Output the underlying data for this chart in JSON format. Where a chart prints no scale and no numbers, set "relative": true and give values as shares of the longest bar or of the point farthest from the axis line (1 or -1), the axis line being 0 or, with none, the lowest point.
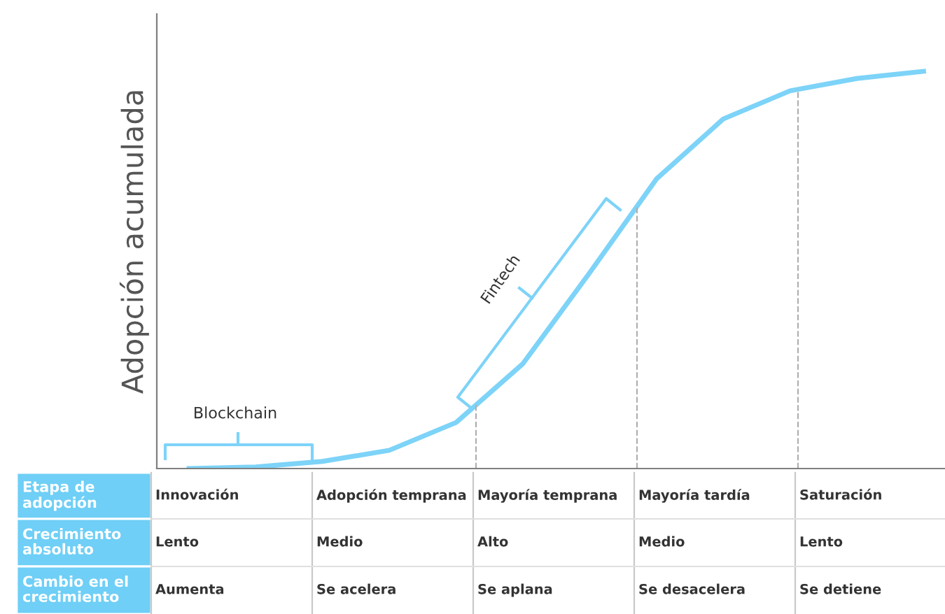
{
  "chart_data": {
    "type": "line",
    "relative": true,
    "ylabel": "Adopción acumulada",
    "categories": [
      null,
      null,
      null,
      null,
      null,
      null,
      null,
      null,
      null,
      null,
      null,
      null
    ],
    "series": [
      {
        "color": "#7dd3f8",
        "values": [
          0,
          0.004,
          0.018,
          0.046,
          0.116,
          0.264,
          0.493,
          0.729,
          0.88,
          0.951,
          0.982,
          1
        ]
      }
    ],
    "marker": "none",
    "line_style": "solid",
    "legend": false,
    "annotations": [
      "Blockchain",
      "Fintech",
      "Etapa de\nadopción",
      "Innovación",
      "Adopción temprana",
      "Mayoría temprana",
      "Mayoría tardía",
      "Saturación",
      "Crecimiento\nabsoluto",
      "Lento",
      "Medio",
      "Alto",
      "Medio",
      "Lento",
      "Cambio en el\ncrecimiento",
      "Aumenta",
      "Se acelera",
      "Se aplana",
      "Se desacelera",
      "Se detiene"
    ]
  }
}
